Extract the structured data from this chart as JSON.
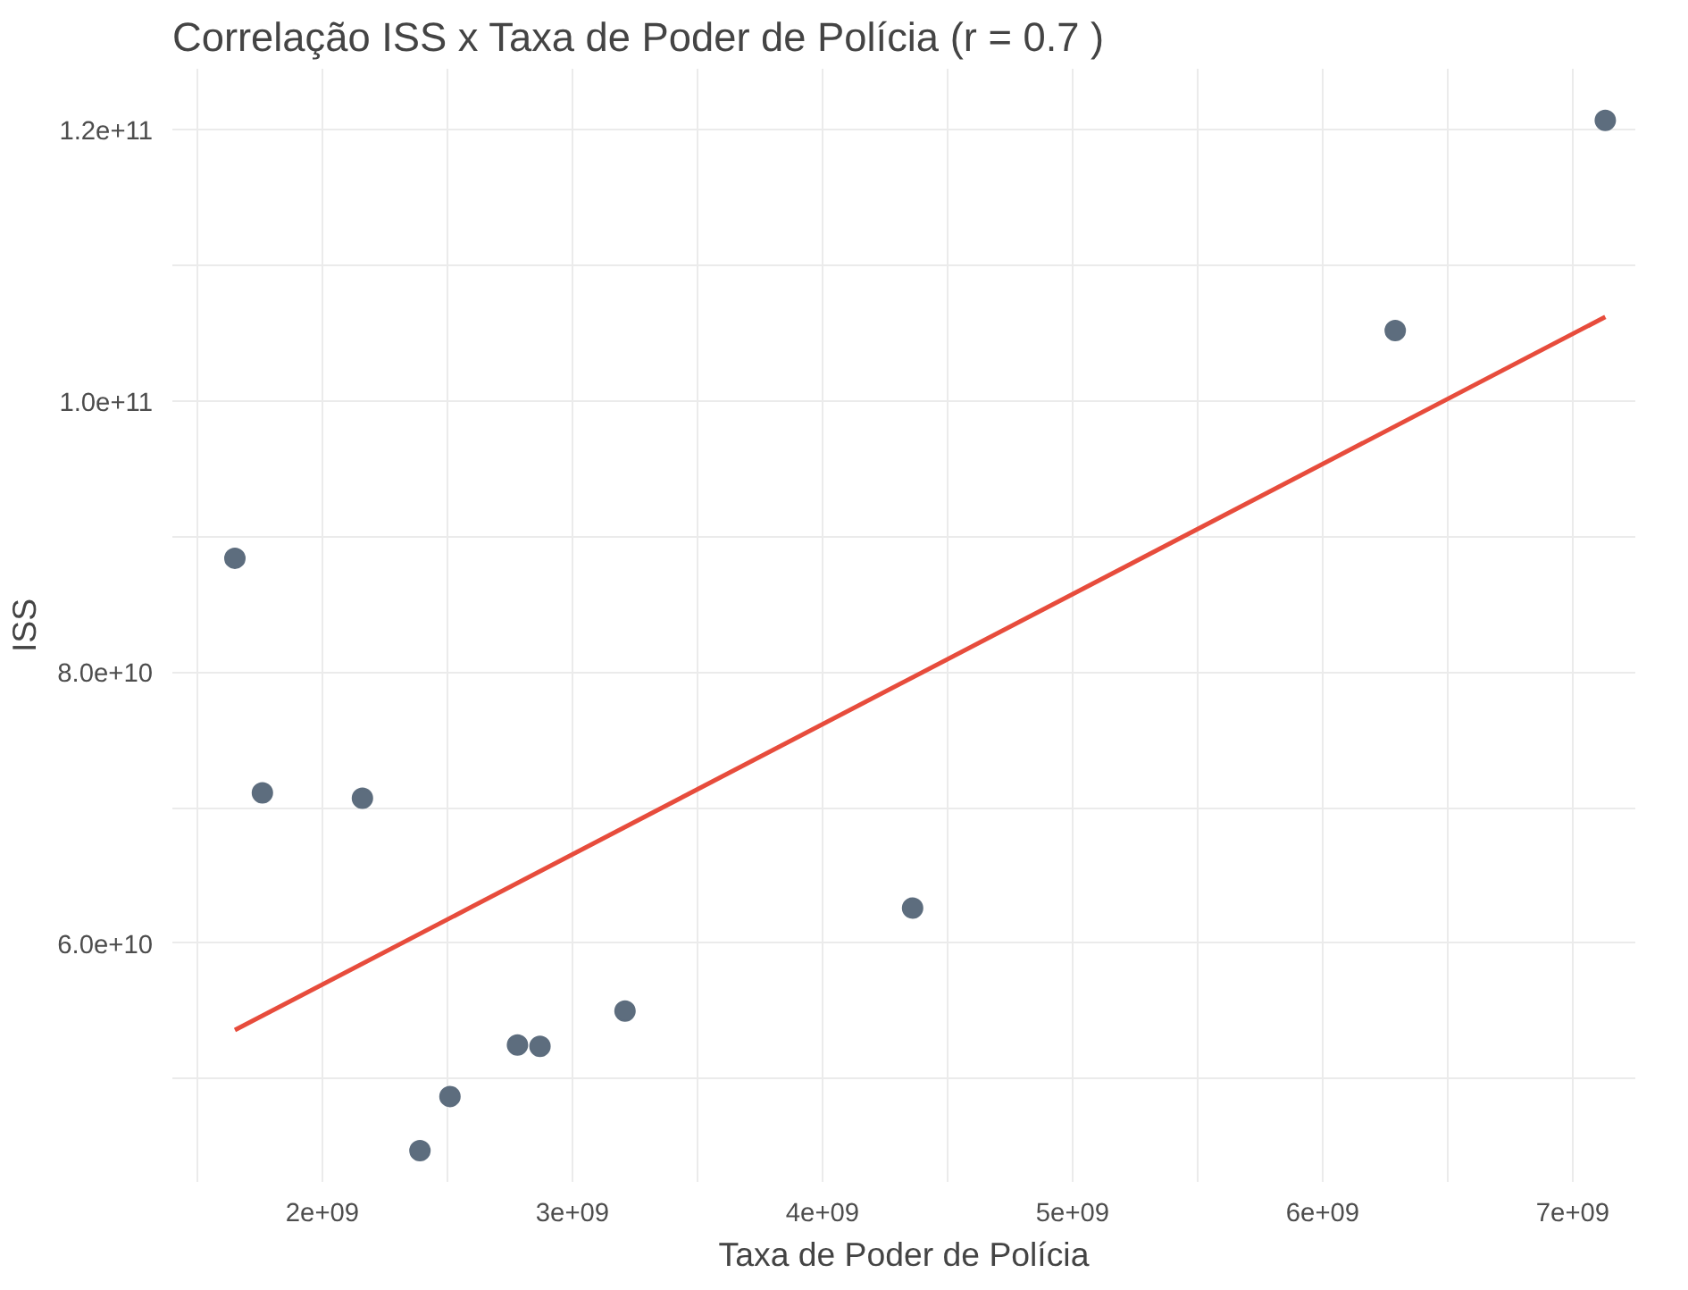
{
  "chart_data": {
    "type": "scatter",
    "title": "Correlação ISS x Taxa de Poder de Polícia (r = 0.7 )",
    "xlabel": "Taxa de Poder de Polícia",
    "ylabel": "ISS",
    "xlim": [
      1400000000.0,
      7250000000.0
    ],
    "ylim": [
      42400000000.0,
      124500000000.0
    ],
    "xticks": [
      {
        "value": 1500000000.0,
        "label": null
      },
      {
        "value": 2000000000.0,
        "label": "2e+09"
      },
      {
        "value": 2500000000.0,
        "label": null
      },
      {
        "value": 3000000000.0,
        "label": "3e+09"
      },
      {
        "value": 3500000000.0,
        "label": null
      },
      {
        "value": 4000000000.0,
        "label": "4e+09"
      },
      {
        "value": 4500000000.0,
        "label": null
      },
      {
        "value": 5000000000.0,
        "label": "5e+09"
      },
      {
        "value": 5500000000.0,
        "label": null
      },
      {
        "value": 6000000000.0,
        "label": "6e+09"
      },
      {
        "value": 6500000000.0,
        "label": null
      },
      {
        "value": 7000000000.0,
        "label": "7e+09"
      }
    ],
    "yticks": [
      {
        "value": 50000000000.0,
        "label": null
      },
      {
        "value": 60000000000.0,
        "label": "6.0e+10"
      },
      {
        "value": 70000000000.0,
        "label": null
      },
      {
        "value": 80000000000.0,
        "label": "8.0e+10"
      },
      {
        "value": 90000000000.0,
        "label": null
      },
      {
        "value": 100000000000.0,
        "label": "1.0e+11"
      },
      {
        "value": 110000000000.0,
        "label": null
      },
      {
        "value": 120000000000.0,
        "label": "1.2e+11"
      }
    ],
    "grid": true,
    "marker": "circle",
    "series": [
      {
        "color": "#5d6d7e",
        "x": [
          1650000000.0,
          1760000000.0,
          2160000000.0,
          2390000000.0,
          2510000000.0,
          2780000000.0,
          2870000000.0,
          3210000000.0,
          4360000000.0,
          6290000000.0,
          7130000000.0
        ],
        "values": [
          88400000000.0,
          71100000000.0,
          70700000000.0,
          44700000000.0,
          48700000000.0,
          52500000000.0,
          52400000000.0,
          55000000000.0,
          62600000000.0,
          105200000000.0,
          120700000000.0
        ]
      },
      {
        "type": "line",
        "marker": "none",
        "color": "#e74c3c",
        "x": [
          1650000000.0,
          7130000000.0
        ],
        "values": [
          53600000000.0,
          106200000000.0
        ]
      }
    ]
  }
}
